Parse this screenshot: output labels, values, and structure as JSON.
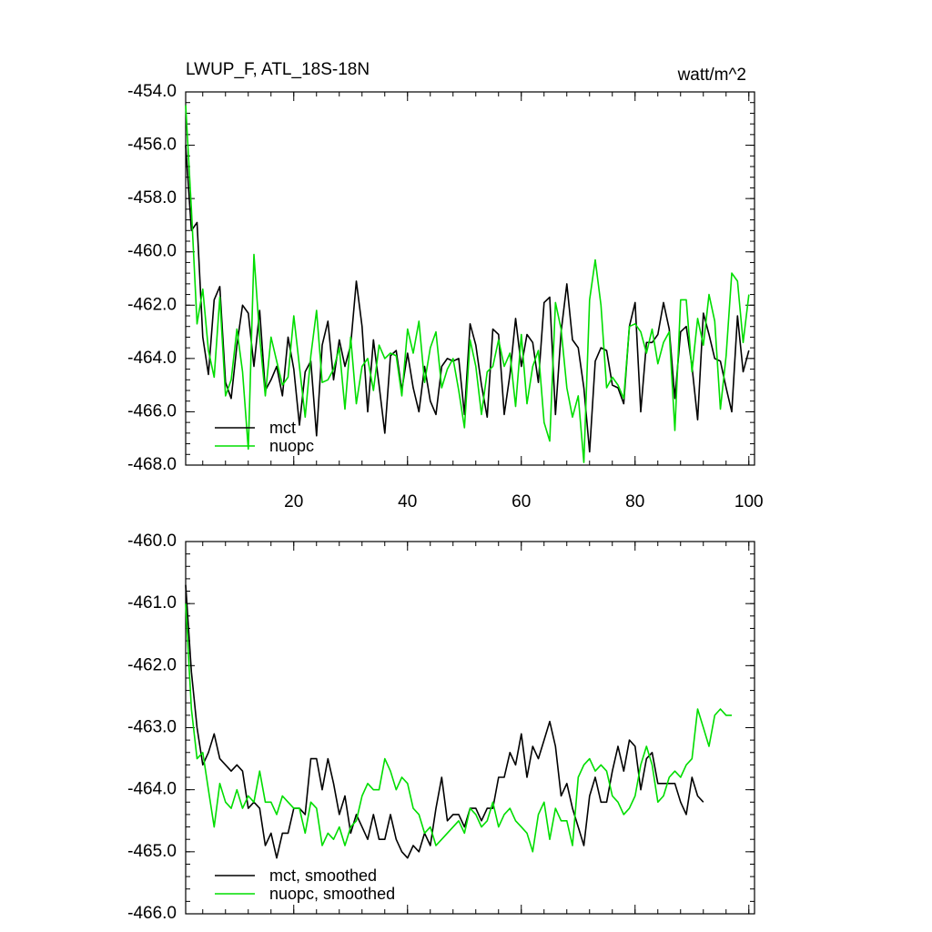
{
  "chart_data": [
    {
      "type": "line",
      "title": "LWUP_F, ATL_18S-18N",
      "units": "watt/m^2",
      "xlim": [
        1,
        101
      ],
      "ylim": [
        -468,
        -454
      ],
      "x_ticks": [
        20,
        40,
        60,
        80,
        100
      ],
      "y_ticks": [
        -454.0,
        -456.0,
        -458.0,
        -460.0,
        -462.0,
        -464.0,
        -466.0,
        -468.0
      ],
      "y_tick_labels": [
        "-454.0",
        "-456.0",
        "-458.0",
        "-460.0",
        "-462.0",
        "-464.0",
        "-466.0",
        "-468.0"
      ],
      "x_tick_labels": [
        "20",
        "40",
        "60",
        "80",
        "100"
      ],
      "legend_position": "bottom-left",
      "series": [
        {
          "name": "mct",
          "color": "#000000",
          "values": [
            -456.0,
            -459.2,
            -458.9,
            -463.2,
            -464.6,
            -461.8,
            -461.3,
            -464.9,
            -465.5,
            -463.5,
            -462.0,
            -462.3,
            -464.3,
            -462.2,
            -465.2,
            -464.8,
            -464.3,
            -465.4,
            -463.2,
            -464.4,
            -466.5,
            -464.5,
            -464.1,
            -466.9,
            -463.5,
            -462.6,
            -464.8,
            -463.3,
            -464.3,
            -463.5,
            -461.1,
            -462.8,
            -466.0,
            -463.3,
            -465.0,
            -466.8,
            -463.9,
            -463.7,
            -465.2,
            -463.8,
            -465.1,
            -466.0,
            -464.3,
            -465.6,
            -466.1,
            -464.3,
            -464.0,
            -464.1,
            -464.0,
            -466.1,
            -462.7,
            -463.5,
            -465.0,
            -466.2,
            -462.9,
            -463.1,
            -466.1,
            -464.6,
            -462.5,
            -464.3,
            -463.1,
            -463.4,
            -464.9,
            -461.9,
            -461.7,
            -466.1,
            -463.0,
            -461.2,
            -463.3,
            -463.6,
            -465.1,
            -467.5,
            -464.1,
            -463.6,
            -463.7,
            -465.0,
            -465.1,
            -465.7,
            -462.8,
            -461.9,
            -466.0,
            -463.4,
            -463.4,
            -463.1,
            -461.9,
            -462.9,
            -465.5,
            -463.0,
            -462.8,
            -464.3,
            -466.3,
            -462.3,
            -463.1,
            -464.0,
            -464.1,
            -465.1,
            -466.0,
            -462.4,
            -464.5,
            -463.7
          ]
        },
        {
          "name": "nuopc",
          "color": "#00dd00",
          "values": [
            -454.5,
            -458.4,
            -462.7,
            -461.4,
            -463.7,
            -464.7,
            -461.7,
            -465.4,
            -464.8,
            -462.9,
            -464.5,
            -467.4,
            -460.1,
            -463.2,
            -465.4,
            -463.2,
            -464.1,
            -465.0,
            -464.7,
            -462.4,
            -464.3,
            -466.2,
            -463.9,
            -462.2,
            -464.9,
            -464.8,
            -464.4,
            -463.6,
            -465.9,
            -463.2,
            -465.7,
            -464.3,
            -464.0,
            -465.2,
            -463.5,
            -464.0,
            -463.8,
            -463.9,
            -465.4,
            -462.9,
            -463.8,
            -462.6,
            -464.9,
            -463.6,
            -463.0,
            -465.1,
            -464.4,
            -464.0,
            -465.2,
            -466.6,
            -463.3,
            -464.3,
            -466.1,
            -464.5,
            -464.3,
            -463.3,
            -464.3,
            -463.8,
            -465.8,
            -463.1,
            -465.7,
            -464.3,
            -463.7,
            -466.4,
            -467.1,
            -461.9,
            -462.9,
            -465.1,
            -466.2,
            -465.4,
            -467.9,
            -461.8,
            -460.3,
            -462.0,
            -465.1,
            -464.7,
            -465.0,
            -465.5,
            -462.8,
            -462.7,
            -463.0,
            -463.8,
            -462.9,
            -464.2,
            -463.4,
            -463.0,
            -466.7,
            -461.8,
            -461.8,
            -464.5,
            -462.5,
            -463.5,
            -461.6,
            -462.6,
            -465.9,
            -463.9,
            -460.8,
            -461.1,
            -463.4,
            -461.6
          ]
        }
      ]
    },
    {
      "type": "line",
      "xlim": [
        1,
        101
      ],
      "ylim": [
        -466,
        -460
      ],
      "x_ticks": [
        20,
        40,
        60,
        80,
        100
      ],
      "y_ticks": [
        -460.0,
        -461.0,
        -462.0,
        -463.0,
        -464.0,
        -465.0,
        -466.0
      ],
      "y_tick_labels": [
        "-460.0",
        "-461.0",
        "-462.0",
        "-463.0",
        "-464.0",
        "-465.0",
        "-466.0"
      ],
      "legend_position": "bottom-left",
      "series": [
        {
          "name": "mct, smoothed",
          "color": "#000000",
          "values": [
            -460.7,
            -462.1,
            -463.0,
            -463.6,
            -463.4,
            -463.1,
            -463.5,
            -463.6,
            -463.7,
            -463.6,
            -463.7,
            -464.3,
            -464.2,
            -464.3,
            -464.9,
            -464.7,
            -465.1,
            -464.7,
            -464.7,
            -464.3,
            -464.3,
            -464.4,
            -463.5,
            -463.5,
            -464.0,
            -463.5,
            -463.9,
            -464.4,
            -464.1,
            -464.7,
            -464.4,
            -464.6,
            -464.8,
            -464.4,
            -464.8,
            -464.8,
            -464.4,
            -464.8,
            -465.0,
            -465.1,
            -464.9,
            -465.0,
            -464.7,
            -464.9,
            -464.3,
            -463.8,
            -464.5,
            -464.4,
            -464.4,
            -464.6,
            -464.3,
            -464.3,
            -464.5,
            -464.3,
            -464.3,
            -463.8,
            -463.8,
            -463.4,
            -463.6,
            -463.1,
            -463.8,
            -463.3,
            -463.5,
            -463.2,
            -462.9,
            -463.3,
            -464.1,
            -463.9,
            -464.3,
            -464.6,
            -464.9,
            -464.1,
            -463.8,
            -464.2,
            -464.2,
            -463.7,
            -463.3,
            -463.7,
            -463.2,
            -463.3,
            -464.0,
            -463.5,
            -463.4,
            -463.9,
            -463.9,
            -463.9,
            -463.9,
            -464.2,
            -464.4,
            -463.8,
            -464.1,
            -464.2
          ]
        },
        {
          "name": "nuopc, smoothed",
          "color": "#00dd00",
          "values": [
            -461.0,
            -462.7,
            -463.5,
            -463.4,
            -464.0,
            -464.6,
            -463.9,
            -464.2,
            -464.3,
            -464.0,
            -464.3,
            -464.1,
            -464.2,
            -463.7,
            -464.2,
            -464.2,
            -464.4,
            -464.1,
            -464.2,
            -464.3,
            -464.3,
            -464.7,
            -464.2,
            -464.3,
            -464.9,
            -464.7,
            -464.8,
            -464.6,
            -464.9,
            -464.6,
            -464.5,
            -464.1,
            -463.9,
            -464.0,
            -464.0,
            -463.5,
            -463.7,
            -464.0,
            -463.8,
            -463.9,
            -464.3,
            -464.4,
            -464.7,
            -464.6,
            -464.9,
            -464.8,
            -464.7,
            -464.6,
            -464.5,
            -464.7,
            -464.3,
            -464.4,
            -464.6,
            -464.5,
            -464.2,
            -464.6,
            -464.4,
            -464.3,
            -464.5,
            -464.6,
            -464.7,
            -465.0,
            -464.4,
            -464.2,
            -464.8,
            -464.3,
            -464.5,
            -464.5,
            -464.9,
            -463.8,
            -463.6,
            -463.5,
            -463.7,
            -463.6,
            -463.7,
            -464.1,
            -464.2,
            -464.4,
            -464.3,
            -464.1,
            -463.6,
            -463.3,
            -463.6,
            -464.2,
            -464.1,
            -463.8,
            -463.7,
            -463.8,
            -463.6,
            -463.5,
            -462.7,
            -463.0,
            -463.3,
            -462.8,
            -462.7,
            -462.8,
            -462.8
          ]
        }
      ]
    }
  ]
}
